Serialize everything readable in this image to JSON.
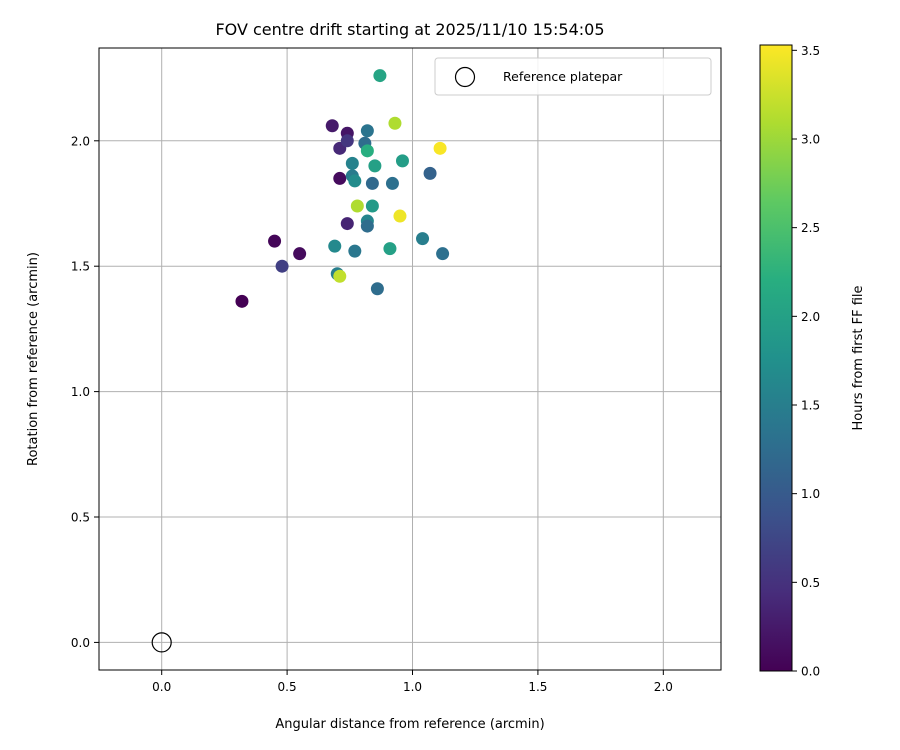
{
  "chart_data": {
    "type": "scatter",
    "title": "FOV centre drift starting at 2025/11/10 15:54:05",
    "xlabel": "Angular distance from reference (arcmin)",
    "ylabel": "Rotation from reference (arcmin)",
    "xlim": [
      -0.25,
      2.23
    ],
    "ylim": [
      -0.11,
      2.37
    ],
    "xticks": [
      0.0,
      0.5,
      1.0,
      1.5,
      2.0
    ],
    "xtick_labels": [
      "0.0",
      "0.5",
      "1.0",
      "1.5",
      "2.0"
    ],
    "yticks": [
      0.0,
      0.5,
      1.0,
      1.5,
      2.0
    ],
    "ytick_labels": [
      "0.0",
      "0.5",
      "1.0",
      "1.5",
      "2.0"
    ],
    "grid": true,
    "legend": {
      "position": "top-right",
      "entries": [
        {
          "label": "Reference platepar",
          "marker": "hollow-circle"
        }
      ]
    },
    "reference_point": {
      "x": 0.0,
      "y": 0.0,
      "label": "Reference platepar"
    },
    "colorbar": {
      "label": "Hours from first FF file",
      "colormap": "viridis",
      "range": [
        0.0,
        3.53
      ],
      "ticks": [
        0.0,
        0.5,
        1.0,
        1.5,
        2.0,
        2.5,
        3.0,
        3.5
      ],
      "tick_labels": [
        "0.0",
        "0.5",
        "1.0",
        "1.5",
        "2.0",
        "2.5",
        "3.0",
        "3.5"
      ]
    },
    "points": [
      {
        "x": 0.32,
        "y": 1.36,
        "c": 0.0
      },
      {
        "x": 0.45,
        "y": 1.6,
        "c": 0.05
      },
      {
        "x": 0.48,
        "y": 1.5,
        "c": 0.65
      },
      {
        "x": 0.55,
        "y": 1.55,
        "c": 0.1
      },
      {
        "x": 0.68,
        "y": 2.06,
        "c": 0.25
      },
      {
        "x": 0.74,
        "y": 2.03,
        "c": 0.2
      },
      {
        "x": 0.71,
        "y": 1.97,
        "c": 0.4
      },
      {
        "x": 0.74,
        "y": 2.0,
        "c": 0.55
      },
      {
        "x": 0.71,
        "y": 1.85,
        "c": 0.1
      },
      {
        "x": 0.74,
        "y": 1.67,
        "c": 0.35
      },
      {
        "x": 0.69,
        "y": 1.58,
        "c": 1.65
      },
      {
        "x": 0.7,
        "y": 1.47,
        "c": 1.5
      },
      {
        "x": 0.71,
        "y": 1.46,
        "c": 3.2
      },
      {
        "x": 0.76,
        "y": 1.86,
        "c": 1.45
      },
      {
        "x": 0.77,
        "y": 1.84,
        "c": 1.7
      },
      {
        "x": 0.76,
        "y": 1.91,
        "c": 1.55
      },
      {
        "x": 0.78,
        "y": 1.74,
        "c": 3.1
      },
      {
        "x": 0.77,
        "y": 1.56,
        "c": 1.4
      },
      {
        "x": 0.81,
        "y": 1.99,
        "c": 1.25
      },
      {
        "x": 0.82,
        "y": 2.04,
        "c": 1.35
      },
      {
        "x": 0.82,
        "y": 1.96,
        "c": 2.2
      },
      {
        "x": 0.82,
        "y": 1.68,
        "c": 1.6
      },
      {
        "x": 0.82,
        "y": 1.66,
        "c": 1.25
      },
      {
        "x": 0.84,
        "y": 1.83,
        "c": 1.2
      },
      {
        "x": 0.84,
        "y": 1.74,
        "c": 1.9
      },
      {
        "x": 0.85,
        "y": 1.9,
        "c": 2.0
      },
      {
        "x": 0.86,
        "y": 1.41,
        "c": 1.25
      },
      {
        "x": 0.87,
        "y": 2.26,
        "c": 2.05
      },
      {
        "x": 0.91,
        "y": 1.57,
        "c": 2.0
      },
      {
        "x": 0.92,
        "y": 1.83,
        "c": 1.3
      },
      {
        "x": 0.93,
        "y": 2.07,
        "c": 3.1
      },
      {
        "x": 0.95,
        "y": 1.7,
        "c": 3.45
      },
      {
        "x": 0.96,
        "y": 1.92,
        "c": 1.95
      },
      {
        "x": 1.04,
        "y": 1.61,
        "c": 1.5
      },
      {
        "x": 1.07,
        "y": 1.87,
        "c": 1.1
      },
      {
        "x": 1.11,
        "y": 1.97,
        "c": 3.5
      },
      {
        "x": 1.12,
        "y": 1.55,
        "c": 1.3
      }
    ]
  }
}
